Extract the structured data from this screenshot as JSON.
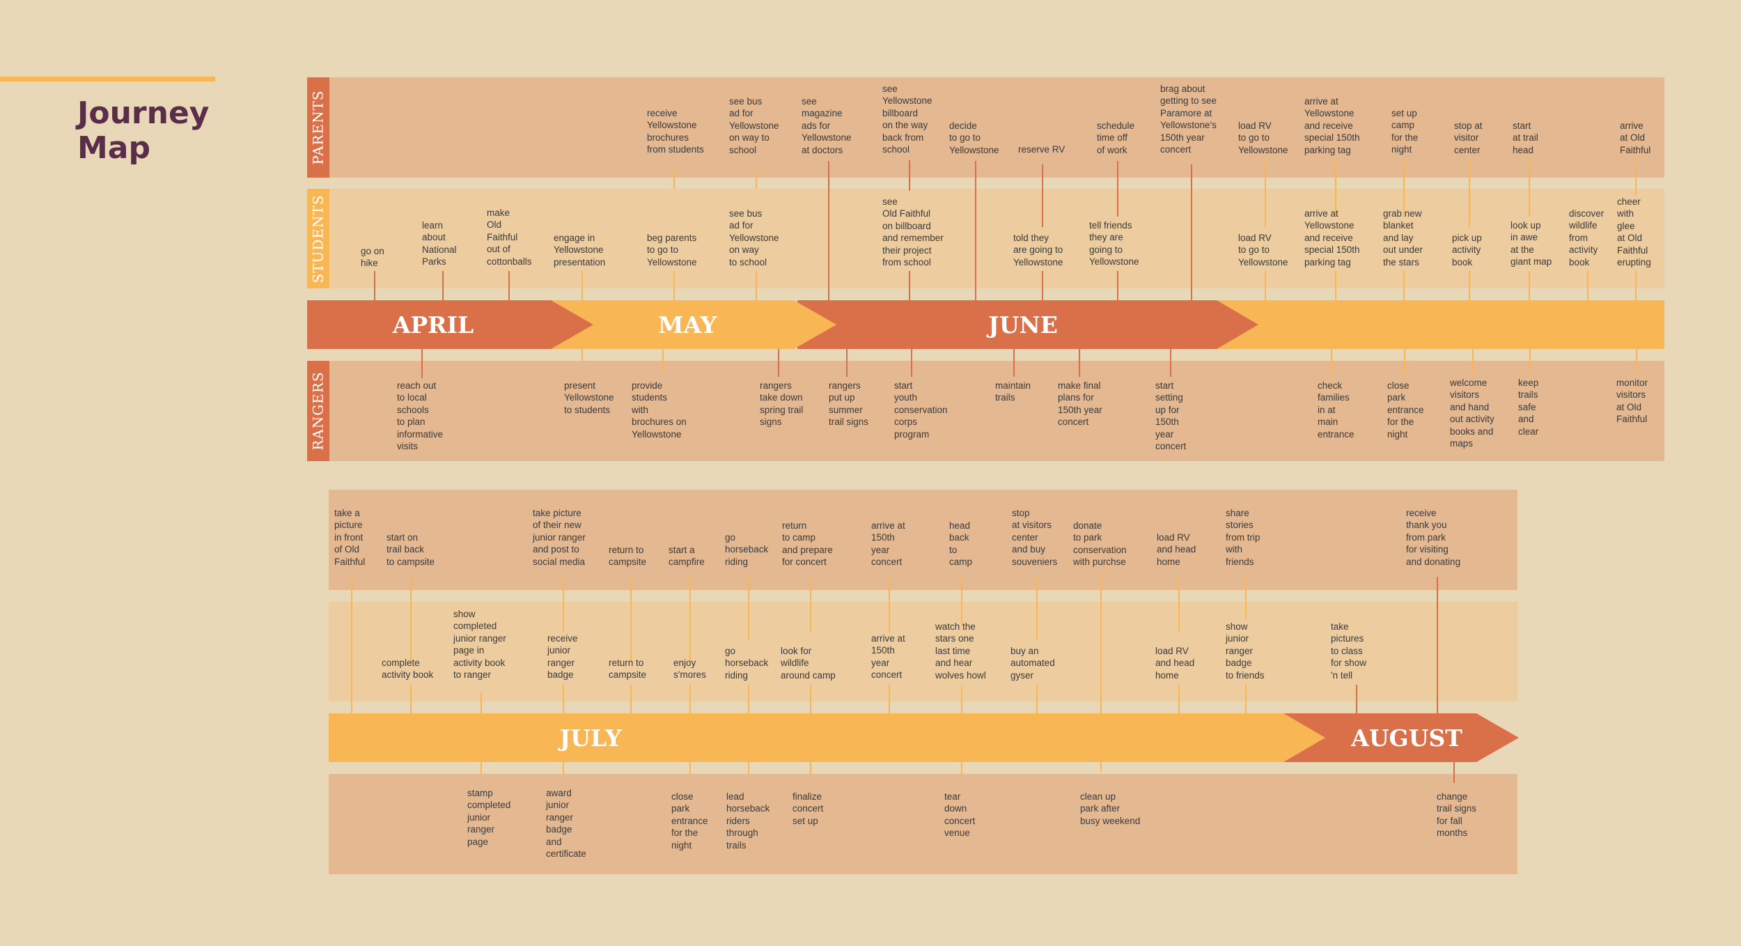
{
  "title": "Journey\nMap",
  "rows": {
    "parents": "PARENTS",
    "students": "STUDENTS",
    "rangers": "RANGERS"
  },
  "colors": {
    "background": "#e9d8b8",
    "band_dark": "#e4b891",
    "band_light": "#edcc9f",
    "accent_dark": "#d9704a",
    "accent_light": "#f8b754",
    "title": "#5a2d4a"
  },
  "months": [
    "APRIL",
    "MAY",
    "JUNE",
    "JULY",
    "AUGUST"
  ],
  "timeline1": {
    "parents": [
      "receive\nYellowstone\nbrochures\nfrom students",
      "see bus\nad for\nYellowstone\non way to\nschool",
      "see\nmagazine\nads for\nYellowstone\nat doctors",
      "see\nYellowstone\nbillboard\non the way\nback from\nschool",
      "decide\nto go to\nYellowstone",
      "reserve RV",
      "schedule\ntime off\nof work",
      "brag about\ngetting to see\nParamore at\nYellowstone's\n150th year\nconcert",
      "load RV\nto go to\nYellowstone",
      "arrive at\nYellowstone\nand receive\nspecial 150th\nparking tag",
      "set up\ncamp\nfor the\nnight",
      "stop at\nvisitor\ncenter",
      "start\nat trail\nhead",
      "arrive\nat Old\nFaithful"
    ],
    "students": [
      "go on\nhike",
      "learn\nabout\nNational\nParks",
      "make\nOld\nFaithful\nout of\ncottonballs",
      "engage in\nYellowstone\npresentation",
      "beg parents\nto go to\nYellowstone",
      "see bus\nad for\nYellowstone\non way\nto school",
      "see\nOld Faithful\non billboard\nand remember\ntheir project\nfrom school",
      "told they\nare going to\nYellowstone",
      "tell friends\nthey are\ngoing to\nYellowstone",
      "load RV\nto go to\nYellowstone",
      "arrive at\nYellowstone\nand receive\nspecial 150th\nparking tag",
      "grab new\nblanket\nand lay\nout under\nthe stars",
      "pick up\nactivity\nbook",
      "look up\nin awe\nat the\ngiant map",
      "discover\nwildlife\nfrom\nactivity\nbook",
      "cheer\nwith\nglee\nat Old\nFaithful\nerupting"
    ],
    "rangers": [
      "reach out\nto local\nschools\nto plan\ninformative\nvisits",
      "present\nYellowstone\nto students",
      "provide\nstudents\nwith\nbrochures on\nYellowstone",
      "rangers\ntake down\nspring trail\nsigns",
      "rangers\nput up\nsummer\ntrail signs",
      "start\nyouth\nconservation\ncorps\nprogram",
      "maintain\ntrails",
      "make final\nplans for\n150th year\nconcert",
      "start\nsetting\nup for\n150th\nyear\nconcert",
      "check\nfamilies\nin at\nmain\nentrance",
      "close\npark\nentrance\nfor the\nnight",
      "welcome\nvisitors\nand hand\nout activity\nbooks and\nmaps",
      "keep\ntrails\nsafe\nand\nclear",
      "monitor\nvisitors\nat Old\nFaithful"
    ]
  },
  "timeline2": {
    "parents": [
      "take a\npicture\nin front\nof Old\nFaithful",
      "start on\ntrail back\nto campsite",
      "take picture\nof their new\njunior ranger\nand post to\nsocial media",
      "return to\ncampsite",
      "start a\ncampfire",
      "go\nhorseback\nriding",
      "return\nto camp\nand prepare\nfor concert",
      "arrive at\n150th\nyear\nconcert",
      "head\nback\nto\ncamp",
      "stop\nat visitors\ncenter\nand buy\nsouveniers",
      "donate\nto park\nconservation\nwith purchse",
      "load RV\nand head\nhome",
      "share\nstories\nfrom trip\nwith\nfriends",
      "receive\nthank you\nfrom park\nfor visiting\nand donating"
    ],
    "students": [
      "complete\nactivity book",
      "show\ncompleted\njunior ranger\npage in\nactivity book\nto ranger",
      "receive\njunior\nranger\nbadge",
      "return to\ncampsite",
      "enjoy\ns'mores",
      "go\nhorseback\nriding",
      "look for\nwildlife\naround camp",
      "arrive at\n150th\nyear\nconcert",
      "watch the\nstars one\nlast time\nand hear\nwolves howl",
      "buy an\nautomated\ngyser",
      "load RV\nand head\nhome",
      "show\njunior\nranger\nbadge\nto friends",
      "take\npictures\nto class\nfor show\n'n tell"
    ],
    "rangers": [
      "stamp\ncompleted\njunior\nranger\npage",
      "award\njunior\nranger\nbadge\nand\ncertificate",
      "close\npark\nentrance\nfor the\nnight",
      "lead\nhorseback\nriders\nthrough\ntrails",
      "finalize\nconcert\nset up",
      "tear\ndown\nconcert\nvenue",
      "clean up\npark after\nbusy weekend",
      "change\ntrail signs\nfor fall\nmonths"
    ]
  }
}
